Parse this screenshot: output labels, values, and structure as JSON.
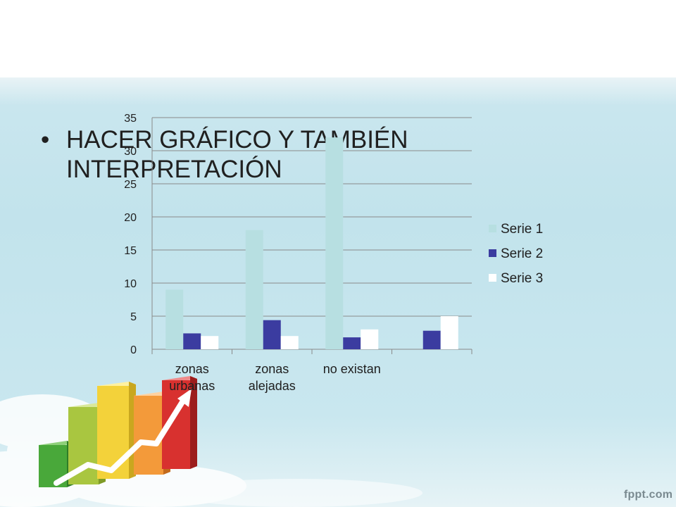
{
  "slide": {
    "bullet": "•",
    "text": "HACER GRÁFICO Y TAMBIÉN INTERPRETACIÓN",
    "brand": "fppt.com"
  },
  "colors": {
    "serie1": "#b7dfe1",
    "serie2": "#3b3ca0",
    "serie3": "#ffffff",
    "grid": "#8a8a8a",
    "text": "#202020"
  },
  "chart_data": {
    "type": "bar",
    "categories": [
      "zonas urbanas",
      "zonas alejadas",
      "no existan",
      ""
    ],
    "series": [
      {
        "name": "Serie 1",
        "values": [
          9,
          18,
          32,
          null
        ]
      },
      {
        "name": "Serie 2",
        "values": [
          2.4,
          4.4,
          1.8,
          2.8
        ]
      },
      {
        "name": "Serie 3",
        "values": [
          2,
          2,
          3,
          5
        ]
      }
    ],
    "yticks": [
      "0",
      "5",
      "10",
      "15",
      "20",
      "25",
      "30",
      "35"
    ],
    "ylim": [
      0,
      35
    ],
    "grid": true,
    "legend": "right"
  }
}
